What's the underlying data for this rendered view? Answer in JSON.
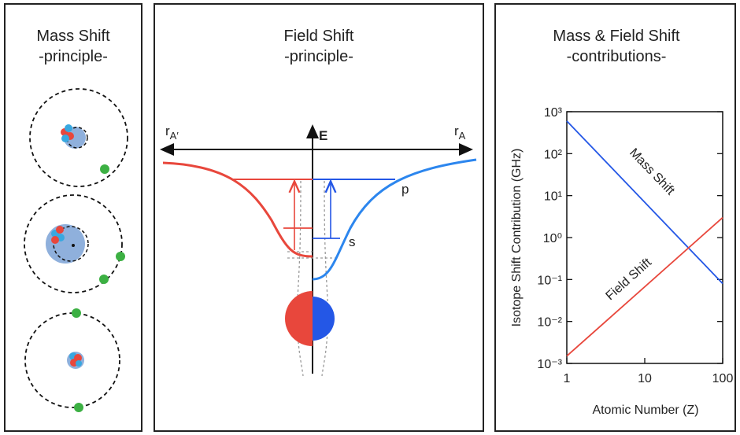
{
  "panels": [
    {
      "title": "Mass Shift",
      "subtitle": "-principle-"
    },
    {
      "title": "Field Shift",
      "subtitle": "-principle-",
      "left_label": {
        "base": "r",
        "sub": "A′"
      },
      "energy_label": "E",
      "right_label": {
        "base": "r",
        "sub": "A"
      },
      "p_label": "p",
      "s_label": "s"
    },
    {
      "title": "Mass & Field Shift",
      "subtitle": "-contributions-"
    }
  ],
  "chart_data": {
    "type": "line",
    "log_x": true,
    "log_y": true,
    "x_label": "Atomic Number (Z)",
    "y_label": "Isotope Shift Contribution (GHz)",
    "x": [
      1,
      100
    ],
    "series": [
      {
        "name": "Mass Shift",
        "color": "#2457e6",
        "values": [
          600,
          0.08
        ]
      },
      {
        "name": "Field Shift",
        "color": "#e8473c",
        "values": [
          0.0015,
          3
        ]
      }
    ],
    "xlim": [
      1,
      100
    ],
    "xticks": [
      1,
      10,
      100
    ],
    "ylim": [
      0.001,
      1000
    ],
    "yticks": [
      {
        "value": 0.001,
        "label": "10⁻³"
      },
      {
        "value": 0.01,
        "label": "10⁻²"
      },
      {
        "value": 0.1,
        "label": "10⁻¹"
      },
      {
        "value": 1,
        "label": "10⁰"
      },
      {
        "value": 10,
        "label": "10¹"
      },
      {
        "value": 100,
        "label": "10²"
      },
      {
        "value": 1000,
        "label": "10³"
      }
    ]
  }
}
